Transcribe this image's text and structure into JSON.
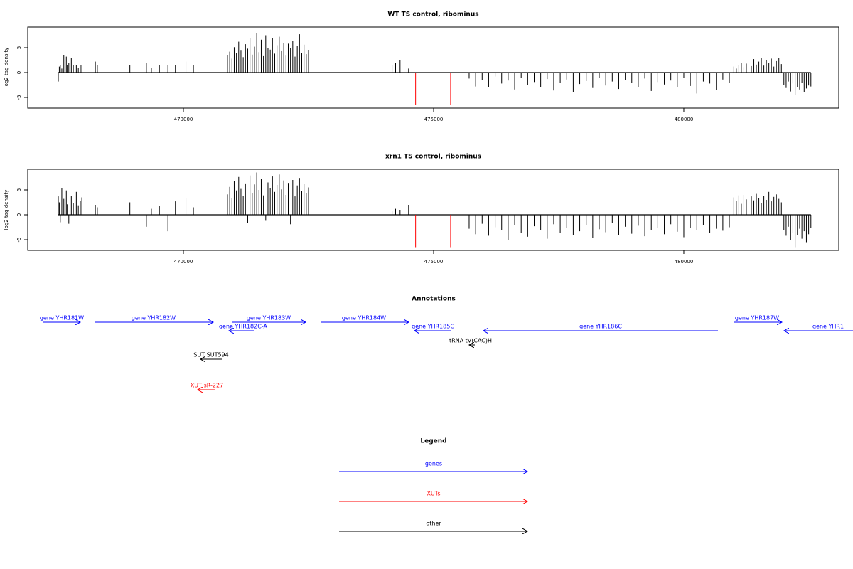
{
  "chart_data": [
    {
      "type": "bar",
      "title": "WT TS control, ribominus",
      "ylabel": "log2 tag density",
      "xlim": [
        466889,
        483097
      ],
      "ylim": [
        -7.14,
        9.14
      ],
      "xticks": [
        470000,
        475000,
        480000
      ],
      "yticks": [
        5,
        0,
        -5
      ],
      "series": [
        {
          "color": "#000000",
          "x": [
            467500,
            467520,
            467540,
            467570,
            467610,
            467660,
            467680,
            467710,
            467760,
            467800,
            467860,
            467900,
            467940,
            467970,
            468240,
            468280,
            468930,
            469260,
            469360,
            469520,
            469690,
            469840,
            470050,
            470200,
            470880,
            470925,
            470970,
            471015,
            471060,
            471105,
            471150,
            471195,
            471240,
            471285,
            471330,
            471375,
            471420,
            471465,
            471510,
            471555,
            471600,
            471645,
            471690,
            471735,
            471780,
            471825,
            471870,
            471915,
            471960,
            472005,
            472050,
            472095,
            472140,
            472185,
            472230,
            472275,
            472320,
            472365,
            472410,
            472455,
            472500,
            474170,
            474240,
            474330,
            474500,
            475710,
            475840,
            475970,
            476100,
            476230,
            476360,
            476490,
            476620,
            476750,
            476880,
            477010,
            477140,
            477270,
            477400,
            477530,
            477660,
            477790,
            477920,
            478050,
            478180,
            478310,
            478440,
            478570,
            478700,
            478830,
            478960,
            479090,
            479220,
            479350,
            479480,
            479610,
            479740,
            479870,
            480000,
            480130,
            480260,
            480390,
            480520,
            480650,
            480780,
            480910,
            481000,
            481050,
            481100,
            481150,
            481200,
            481250,
            481300,
            481350,
            481400,
            481450,
            481500,
            481550,
            481600,
            481650,
            481700,
            481750,
            481800,
            481850,
            481900,
            481950,
            482000,
            482045,
            482090,
            482135,
            482180,
            482225,
            482270,
            482315,
            482360,
            482405,
            482450,
            482495,
            482540
          ],
          "values": [
            -1.8,
            1.2,
            1.5,
            0.8,
            3.5,
            3.2,
            1.5,
            2.0,
            3.0,
            1.5,
            1.5,
            1.0,
            1.5,
            1.5,
            2.2,
            1.5,
            1.5,
            2.0,
            1.0,
            1.5,
            1.5,
            1.5,
            2.2,
            1.5,
            3.5,
            4.2,
            2.8,
            5.1,
            3.9,
            6.2,
            4.4,
            3.1,
            5.7,
            4.8,
            7.0,
            3.6,
            5.2,
            8.0,
            4.1,
            6.6,
            3.3,
            7.5,
            5.0,
            4.6,
            6.9,
            3.8,
            5.5,
            7.2,
            4.3,
            6.0,
            3.4,
            5.8,
            4.9,
            6.4,
            3.2,
            5.3,
            7.7,
            4.0,
            5.6,
            3.7,
            4.5,
            1.5,
            2.0,
            2.5,
            0.8,
            -1.2,
            -2.8,
            -1.5,
            -3.0,
            -0.8,
            -2.2,
            -1.6,
            -3.4,
            -1.1,
            -2.5,
            -1.9,
            -2.9,
            -1.3,
            -3.6,
            -2.0,
            -1.4,
            -4.0,
            -2.3,
            -1.7,
            -3.1,
            -1.0,
            -2.6,
            -1.8,
            -3.3,
            -1.5,
            -2.1,
            -2.9,
            -1.2,
            -3.7,
            -1.9,
            -2.4,
            -1.6,
            -3.0,
            -1.1,
            -2.7,
            -4.2,
            -1.8,
            -2.2,
            -3.5,
            -1.4,
            -2.0,
            1.2,
            0.8,
            1.5,
            2.0,
            1.1,
            1.8,
            2.4,
            1.3,
            2.7,
            1.6,
            2.2,
            3.0,
            1.4,
            2.5,
            1.9,
            2.8,
            1.2,
            2.3,
            3.0,
            1.7,
            -2.5,
            -3.1,
            -1.8,
            -3.8,
            -2.2,
            -4.5,
            -2.9,
            -3.4,
            -2.0,
            -4.0,
            -3.2,
            -2.6,
            -2.8
          ]
        },
        {
          "color": "#ff0000",
          "x": [
            474640,
            475340
          ],
          "values": [
            -6.5,
            -6.5
          ]
        }
      ]
    },
    {
      "type": "bar",
      "title": "xrn1 TS control, ribominus",
      "ylabel": "log2 tag density",
      "xlim": [
        466889,
        483097
      ],
      "ylim": [
        -7.14,
        9.14
      ],
      "xticks": [
        470000,
        475000,
        480000
      ],
      "yticks": [
        5,
        0,
        -5
      ],
      "series": [
        {
          "color": "#000000",
          "x": [
            467500,
            467520,
            467540,
            467570,
            467610,
            467660,
            467680,
            467710,
            467760,
            467800,
            467860,
            467900,
            467940,
            467970,
            468240,
            468280,
            468930,
            469260,
            469360,
            469520,
            469690,
            469840,
            470050,
            470200,
            470880,
            470925,
            470970,
            471015,
            471060,
            471105,
            471150,
            471195,
            471240,
            471285,
            471330,
            471375,
            471420,
            471465,
            471510,
            471555,
            471600,
            471645,
            471690,
            471735,
            471780,
            471825,
            471870,
            471915,
            471960,
            472005,
            472050,
            472095,
            472140,
            472185,
            472230,
            472275,
            472320,
            472365,
            472410,
            472455,
            472500,
            474170,
            474240,
            474330,
            474500,
            475710,
            475840,
            475970,
            476100,
            476230,
            476360,
            476490,
            476620,
            476750,
            476880,
            477010,
            477140,
            477270,
            477400,
            477530,
            477660,
            477790,
            477920,
            478050,
            478180,
            478310,
            478440,
            478570,
            478700,
            478830,
            478960,
            479090,
            479220,
            479350,
            479480,
            479610,
            479740,
            479870,
            480000,
            480130,
            480260,
            480390,
            480520,
            480650,
            480780,
            480910,
            481000,
            481050,
            481100,
            481150,
            481200,
            481250,
            481300,
            481350,
            481400,
            481450,
            481500,
            481550,
            481600,
            481650,
            481700,
            481750,
            481800,
            481850,
            481900,
            481950,
            482000,
            482045,
            482090,
            482135,
            482180,
            482225,
            482270,
            482315,
            482360,
            482405,
            482450,
            482495,
            482540
          ],
          "values": [
            3.7,
            2.5,
            -1.5,
            5.4,
            3.2,
            4.9,
            2.1,
            -1.8,
            3.8,
            2.4,
            4.6,
            1.9,
            2.8,
            3.5,
            2.0,
            1.5,
            2.5,
            -2.4,
            1.2,
            1.8,
            -3.3,
            2.7,
            3.4,
            1.5,
            4.1,
            5.6,
            3.3,
            6.8,
            4.9,
            7.6,
            5.2,
            3.8,
            6.3,
            -1.7,
            7.9,
            4.4,
            6.1,
            8.5,
            5.0,
            7.2,
            3.9,
            -1.2,
            6.5,
            5.4,
            7.7,
            4.6,
            6.0,
            8.1,
            5.1,
            6.9,
            4.0,
            6.4,
            -1.9,
            7.0,
            3.7,
            5.9,
            7.4,
            4.8,
            6.2,
            4.3,
            5.5,
            0.8,
            1.2,
            1.0,
            2.0,
            -2.8,
            -3.9,
            -1.8,
            -4.2,
            -2.5,
            -3.1,
            -5.0,
            -2.0,
            -3.6,
            -4.4,
            -2.3,
            -3.0,
            -4.8,
            -1.9,
            -3.7,
            -2.6,
            -4.1,
            -3.3,
            -2.1,
            -4.6,
            -2.9,
            -3.5,
            -1.7,
            -4.0,
            -2.4,
            -3.8,
            -2.2,
            -4.3,
            -3.0,
            -2.7,
            -3.9,
            -1.9,
            -3.4,
            -4.5,
            -2.6,
            -3.1,
            -2.0,
            -3.6,
            -2.8,
            -3.2,
            -2.5,
            3.5,
            2.8,
            3.9,
            2.2,
            4.0,
            3.1,
            2.6,
            3.7,
            2.9,
            4.2,
            3.3,
            2.4,
            3.8,
            3.0,
            4.6,
            2.7,
            3.6,
            4.1,
            3.2,
            2.5,
            -3.0,
            -4.2,
            -2.4,
            -5.1,
            -3.6,
            -6.5,
            -4.0,
            -2.8,
            -4.8,
            -3.3,
            -5.5,
            -3.9,
            -2.6
          ]
        },
        {
          "color": "#ff0000",
          "x": [
            474640,
            475340
          ],
          "values": [
            -6.5,
            -6.5
          ]
        }
      ]
    }
  ],
  "annotations": {
    "title": "Annotations",
    "items": [
      {
        "label": "gene YHR181W",
        "color": "#0000ff"
      },
      {
        "label": "gene YHR182W",
        "color": "#0000ff"
      },
      {
        "label": "gene YHR183W",
        "color": "#0000ff"
      },
      {
        "label": "gene YHR182C-A",
        "color": "#0000ff"
      },
      {
        "label": "gene YHR184W",
        "color": "#0000ff"
      },
      {
        "label": "gene YHR185C",
        "color": "#0000ff"
      },
      {
        "label": "gene YHR186C",
        "color": "#0000ff"
      },
      {
        "label": "gene YHR187W",
        "color": "#0000ff"
      },
      {
        "label": "gene YHR1",
        "color": "#0000ff"
      },
      {
        "label": "tRNA tV(CAC)H",
        "color": "#000000"
      },
      {
        "label": "SUT SUT594",
        "color": "#000000"
      },
      {
        "label": "XUT sR-227",
        "color": "#ff0000"
      }
    ]
  },
  "legend": {
    "title": "Legend",
    "items": [
      {
        "label": "genes",
        "color": "#0000ff"
      },
      {
        "label": "XUTs",
        "color": "#ff0000"
      },
      {
        "label": "other",
        "color": "#000000"
      }
    ]
  }
}
